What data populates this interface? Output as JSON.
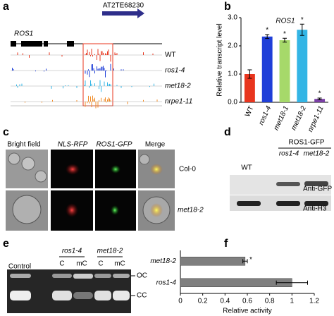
{
  "panel_labels": [
    "a",
    "b",
    "c",
    "d",
    "e",
    "f"
  ],
  "panel_a": {
    "te_name": "AT2TE68230",
    "gene": "ROS1",
    "tracks": [
      "WT",
      "ros1-4",
      "met18-2",
      "nrpe1-11"
    ]
  },
  "panel_c": {
    "columns": [
      "Bright field",
      "NLS-RFP",
      "ROS1-GFP",
      "Merge"
    ],
    "rows": [
      "Col-0",
      "met18-2"
    ]
  },
  "panel_d": {
    "group": "ROS1-GFP",
    "lanes": [
      "WT",
      "ros1-4",
      "met18-2"
    ],
    "blots": [
      "Anti-GFP",
      "Anti-H3"
    ]
  },
  "panel_e": {
    "control": "Control",
    "groups": [
      "ros1-4",
      "met18-2"
    ],
    "lanes": [
      "C",
      "mC",
      "C",
      "mC"
    ],
    "bands": [
      "OC",
      "CC"
    ]
  },
  "chart_data": [
    {
      "type": "bar",
      "title": "ROS1",
      "y_label": "Relative transcript level",
      "categories": [
        "WT",
        "ros1-4",
        "met18-1",
        "met18-2",
        "nrpe1-11"
      ],
      "values": [
        1.0,
        2.33,
        2.2,
        2.57,
        0.12
      ],
      "errors": [
        0.15,
        0.07,
        0.07,
        0.2,
        0.03
      ],
      "colors": [
        "#e8351e",
        "#1f3fd8",
        "#a6d96a",
        "#33b5e5",
        "#7b3fa6"
      ],
      "significance": [
        null,
        "*",
        "*",
        "*",
        "*"
      ],
      "ylim": [
        0,
        3
      ],
      "yticks": [
        {
          "value": 0,
          "label": "0.0"
        },
        {
          "value": 1,
          "label": "1.0"
        },
        {
          "value": 2,
          "label": "2.0"
        },
        {
          "value": 3,
          "label": "3.0"
        }
      ]
    },
    {
      "type": "hbar",
      "x_label": "Relative activity",
      "categories": [
        "met18-2",
        "ros1-4"
      ],
      "values": [
        0.58,
        1.0
      ],
      "errors": [
        0.02,
        0.14
      ],
      "color": "#7f7f7f",
      "significance": [
        "*",
        null
      ],
      "xlim": [
        0,
        1.2
      ],
      "xticks": [
        0,
        0.2,
        0.4,
        0.6,
        0.8,
        1,
        1.2
      ]
    }
  ]
}
